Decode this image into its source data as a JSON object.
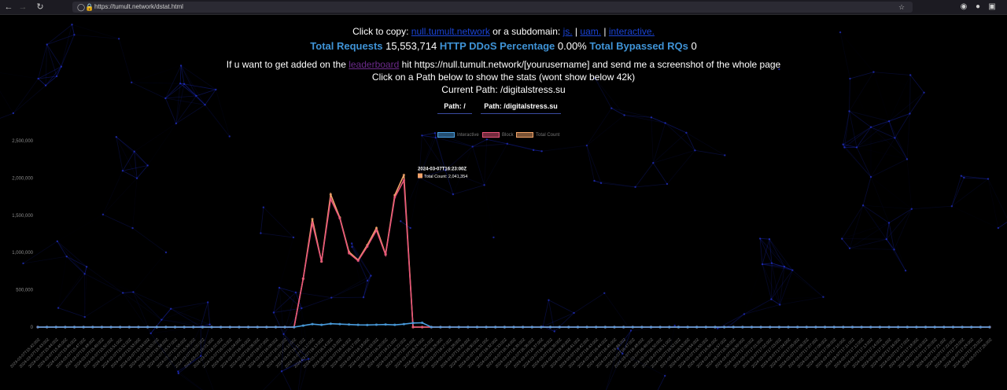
{
  "browser": {
    "url": "https://tumult.network/dstat.html",
    "back_icon": "arrow-left-icon",
    "forward_icon": "arrow-right-icon",
    "reload_icon": "reload-icon",
    "star_icon": "star-icon"
  },
  "header": {
    "copy_prefix": "Click to copy:",
    "link_null": "null.tumult.network",
    "copy_mid": "or a subdomain:",
    "link_js": "js.",
    "sep1": "|",
    "link_uam": "uam.",
    "sep2": "|",
    "link_interactive": "interactive."
  },
  "stats": {
    "total_requests_label": "Total Requests",
    "total_requests_value": "15,553,714",
    "ddos_pct_label": "HTTP DDoS Percentage",
    "ddos_pct_value": "0.00%",
    "bypassed_label": "Total Bypassed RQs",
    "bypassed_value": "0"
  },
  "info": {
    "leaderboard_prefix": "If u want to get added on the",
    "leaderboard_link": "leaderboard",
    "leaderboard_suffix": "hit https://null.tumult.network/[yourusername] and send me a screenshot of the whole page",
    "path_hint": "Click on a Path below to show the stats (wont show below 42k)",
    "current_path": "Current Path: /digitalstress.su"
  },
  "paths": [
    {
      "label": "Path: /"
    },
    {
      "label": "Path: /digitalstress.su"
    }
  ],
  "colors": {
    "interactive": "#4a9ee0",
    "block": "#e8557a",
    "total": "#f2a46a",
    "link": "#1a43d4",
    "stat_label": "#3f93d6"
  },
  "chart_data": {
    "type": "line",
    "title": "",
    "xlabel": "",
    "ylabel": "",
    "ylim": [
      0,
      2500000
    ],
    "yticks": [
      "0",
      "500,000",
      "1,000,000",
      "1,500,000",
      "2,000,000",
      "2,500,000"
    ],
    "ytick_values": [
      0,
      500000,
      1000000,
      1500000,
      2000000,
      2500000
    ],
    "legend": [
      "Interactive",
      "Block",
      "Total Count"
    ],
    "legend_position": "top",
    "x_count": 105,
    "first_x": "2024-03-07T15:42:00Z",
    "x_step_seconds": 60,
    "series": [
      {
        "name": "Interactive",
        "points": "flat 0 except small values during active period",
        "active_values": [
          0,
          20000,
          40000,
          30000,
          45000,
          40000,
          35000,
          30000,
          28000,
          32000,
          35000,
          30000,
          40000,
          55000,
          58000
        ]
      },
      {
        "name": "Block",
        "active_start_index": 28,
        "active_values": [
          0,
          650000,
          1400000,
          880000,
          1720000,
          1460000,
          990000,
          890000,
          1080000,
          1300000,
          970000,
          1740000,
          1970000,
          0
        ]
      },
      {
        "name": "Total Count",
        "active_start_index": 28,
        "active_values": [
          0,
          650000,
          1450000,
          880000,
          1780000,
          1470000,
          1010000,
          900000,
          1100000,
          1330000,
          980000,
          1770000,
          2041354,
          0
        ]
      }
    ],
    "tooltip": {
      "time": "2024-03-07T16:23:00Z",
      "label": "Total Count: 2,041,354"
    }
  }
}
